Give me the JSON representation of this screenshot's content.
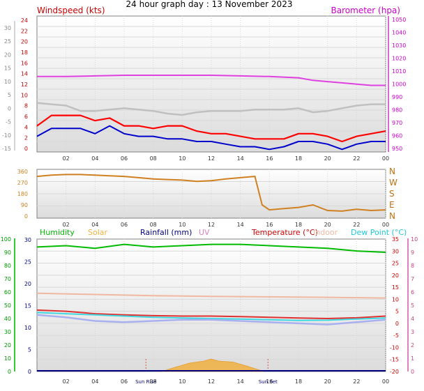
{
  "page": {
    "title": "24 hour graph day : 13 November 2023"
  },
  "colors": {
    "wind": "#ff0000",
    "gust_grey": "#c0c0c0",
    "avg_blue": "#0000cc",
    "barometer": "#e040e0",
    "direction": "#d08020",
    "humidity": "#00bb00",
    "solar": "#f0b040",
    "rain": "#000080",
    "uv": "#e080c0",
    "temperature": "#e03030",
    "indoor": "#f0b8a0",
    "dewpoint": "#40d8e0",
    "feels": "#a8b0f0",
    "sun_marker": "#d06040"
  },
  "chart_data": [
    {
      "type": "line",
      "title": "",
      "left_label": "Windspeed (kts)",
      "right_label": "Barometer (hpa)",
      "x_ticks": [
        "02",
        "04",
        "06",
        "08",
        "10",
        "12",
        "14",
        "16",
        "18",
        "20",
        "22",
        "00"
      ],
      "outer_left_ticks": [
        "30",
        "25",
        "20",
        "15",
        "10",
        "5",
        "0",
        "-5",
        "-10",
        "-15"
      ],
      "left_ticks": [
        "24",
        "22",
        "20",
        "18",
        "16",
        "14",
        "12",
        "10",
        "8",
        "6",
        "4",
        "2",
        "0"
      ],
      "right_ticks": [
        "1050",
        "1040",
        "1030",
        "1020",
        "1010",
        "1000",
        "990",
        "980",
        "970",
        "960",
        "950"
      ],
      "ylim_left": [
        0,
        25
      ],
      "ylim_right": [
        950,
        1050
      ],
      "series": [
        {
          "axis": "right",
          "color_key": "barometer",
          "x": [
            0,
            2,
            4,
            6,
            8,
            10,
            12,
            14,
            16,
            18,
            19,
            20,
            21,
            22,
            23,
            24
          ],
          "y": [
            1007,
            1007,
            1007.5,
            1008,
            1008,
            1008,
            1008,
            1007.5,
            1007,
            1006,
            1004,
            1003,
            1002,
            1001,
            1000,
            1000
          ]
        },
        {
          "axis": "outer",
          "color_key": "gust_grey",
          "x": [
            0,
            1,
            2,
            3,
            4,
            5,
            6,
            7,
            8,
            9,
            10,
            11,
            12,
            13,
            14,
            15,
            16,
            17,
            18,
            19,
            20,
            21,
            22,
            23,
            24
          ],
          "y": [
            2,
            1.5,
            1,
            -1,
            -1,
            -0.5,
            0,
            -0.5,
            -1,
            -2,
            -2.5,
            -1.5,
            -1,
            -1,
            -1,
            -0.5,
            -0.5,
            -0.5,
            0,
            -1.5,
            -1,
            0,
            1,
            1.5,
            1.5
          ]
        },
        {
          "axis": "left",
          "color_key": "wind",
          "x": [
            0,
            1,
            2,
            3,
            4,
            5,
            6,
            7,
            8,
            9,
            10,
            11,
            12,
            13,
            14,
            15,
            16,
            17,
            18,
            19,
            20,
            21,
            22,
            23,
            24
          ],
          "y": [
            5,
            7,
            7,
            7,
            6,
            6.5,
            5,
            5,
            4.5,
            5,
            5,
            4,
            3.5,
            3.5,
            3,
            2.5,
            2.5,
            2.5,
            3.5,
            3.5,
            3,
            2,
            3,
            3.5,
            4
          ]
        },
        {
          "axis": "left",
          "color_key": "avg_blue",
          "x": [
            0,
            1,
            2,
            3,
            4,
            5,
            6,
            7,
            8,
            9,
            10,
            11,
            12,
            13,
            14,
            15,
            16,
            17,
            18,
            19,
            20,
            21,
            22,
            23,
            24
          ],
          "y": [
            3,
            4.5,
            4.5,
            4.5,
            3.5,
            5,
            3.5,
            3,
            3,
            2.5,
            2.5,
            2,
            2,
            1.5,
            1,
            1,
            0.5,
            1,
            2,
            2,
            1.5,
            0.5,
            1.5,
            2,
            2
          ]
        }
      ]
    },
    {
      "type": "line",
      "title": "",
      "right_ticks": [
        "N",
        "W",
        "S",
        "E",
        "N"
      ],
      "left_ticks": [
        "360",
        "270",
        "180",
        "90",
        "0"
      ],
      "x_ticks": [
        "02",
        "04",
        "06",
        "08",
        "10",
        "12",
        "14",
        "16",
        "18",
        "20",
        "22",
        "00"
      ],
      "ylim": [
        0,
        360
      ],
      "series": [
        {
          "color_key": "direction",
          "x": [
            0,
            1,
            2,
            3,
            4,
            5,
            6,
            7,
            8,
            9,
            10,
            11,
            12,
            13,
            14,
            15,
            15.5,
            16,
            17,
            18,
            19,
            20,
            21,
            22,
            23,
            24
          ],
          "y": [
            320,
            330,
            335,
            335,
            330,
            325,
            320,
            310,
            300,
            295,
            290,
            280,
            285,
            300,
            310,
            320,
            90,
            50,
            60,
            70,
            90,
            45,
            40,
            55,
            45,
            50
          ]
        }
      ]
    },
    {
      "type": "line",
      "title": "",
      "legend": [
        "Humidity",
        "Solar",
        "Rainfall (mm)",
        "UV",
        "Temperature (°C)",
        "Indoor",
        "Dew Point (°C)"
      ],
      "x_ticks": [
        "02",
        "04",
        "06",
        "Sun Rise",
        "08",
        "10",
        "12",
        "14",
        "Sun Set",
        "16",
        "18",
        "20",
        "22",
        "00"
      ],
      "humidity_ticks": [
        "100",
        "90",
        "80",
        "70",
        "60",
        "50",
        "40",
        "30",
        "20",
        "10",
        "0"
      ],
      "rain_ticks": [
        "30",
        "25",
        "20",
        "15",
        "10",
        "5",
        "0"
      ],
      "temp_ticks": [
        "35",
        "30",
        "25",
        "20",
        "15",
        "10",
        "5",
        "0",
        "-5",
        "-10",
        "-15",
        "-20"
      ],
      "uv_ticks": [
        "10",
        "9",
        "8",
        "7",
        "6",
        "5",
        "4",
        "3",
        "2",
        "1",
        "0"
      ],
      "ylim_humidity": [
        0,
        100
      ],
      "ylim_temp": [
        -20,
        35
      ],
      "series": [
        {
          "axis": "humidity",
          "color_key": "humidity",
          "x": [
            0,
            2,
            4,
            6,
            8,
            10,
            12,
            14,
            16,
            18,
            20,
            22,
            24
          ],
          "y": [
            94,
            95,
            93,
            96,
            94,
            95,
            96,
            96,
            95,
            94,
            93,
            91,
            90
          ]
        },
        {
          "axis": "temp",
          "color_key": "indoor",
          "x": [
            0,
            4,
            8,
            12,
            16,
            20,
            24
          ],
          "y": [
            12.5,
            12,
            11.5,
            11.2,
            11,
            10.8,
            10.5
          ]
        },
        {
          "axis": "temp",
          "color_key": "temperature",
          "x": [
            0,
            2,
            4,
            6,
            8,
            10,
            12,
            14,
            16,
            18,
            20,
            22,
            24
          ],
          "y": [
            5.5,
            5,
            4,
            3.5,
            3.2,
            3,
            3,
            2.8,
            2.5,
            2.2,
            2,
            2.3,
            3
          ]
        },
        {
          "axis": "temp",
          "color_key": "dewpoint",
          "x": [
            0,
            2,
            4,
            6,
            8,
            10,
            12,
            14,
            16,
            18,
            20,
            22,
            24
          ],
          "y": [
            4.5,
            4,
            3.5,
            3,
            2.5,
            2.2,
            2,
            1.8,
            1.5,
            1.2,
            1.3,
            1.8,
            2.2
          ]
        },
        {
          "axis": "temp",
          "color_key": "feels",
          "x": [
            0,
            2,
            4,
            6,
            8,
            10,
            12,
            14,
            16,
            18,
            20,
            22,
            24
          ],
          "y": [
            3.5,
            2.5,
            1,
            0.5,
            1,
            1.5,
            1.5,
            1,
            0.5,
            0,
            -0.5,
            0.5,
            1.5
          ]
        }
      ],
      "solar": {
        "x": [
          8.6,
          9.5,
          10.5,
          11.5,
          12,
          12.5,
          13.5,
          14.5,
          15.6
        ],
        "y": [
          0,
          4,
          8,
          10,
          12,
          10,
          9,
          5,
          0
        ]
      },
      "sun_rise_hour": 7.5,
      "sun_set_hour": 15.9
    }
  ]
}
